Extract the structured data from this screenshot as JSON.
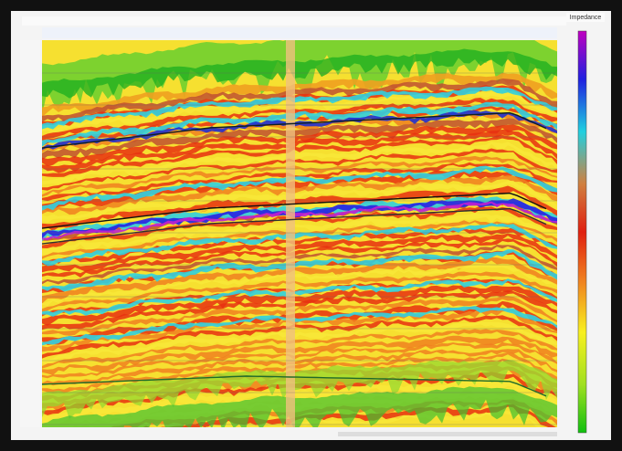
{
  "colorbar": {
    "title": "Impedance"
  }
}
